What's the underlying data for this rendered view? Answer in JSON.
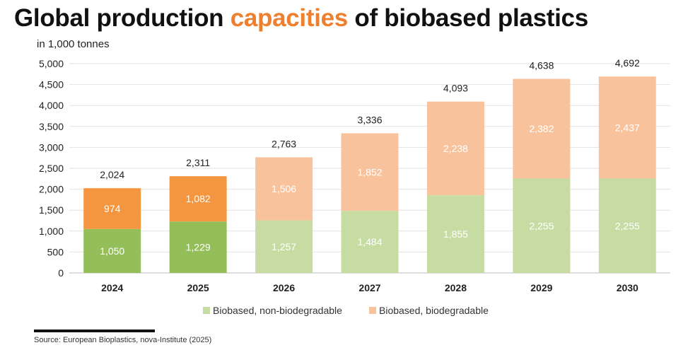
{
  "title": {
    "part1": "Global production ",
    "accent": "capacities",
    "part2": " of biobased plastics"
  },
  "unit_label": "in 1,000 tonnes",
  "source": "Source: European Bioplastics, nova-Institute (2025)",
  "colors": {
    "accent": "#ee7f2d",
    "nonbio_dark": "#94be5a",
    "nonbio_light": "#c7dca3",
    "bio_dark": "#f4963f",
    "bio_light": "#f8c39c"
  },
  "chart_data": {
    "type": "bar",
    "stacked": true,
    "categories": [
      "2024",
      "2025",
      "2026",
      "2027",
      "2028",
      "2029",
      "2030"
    ],
    "series": [
      {
        "name": "Biobased, non-biodegradable",
        "values": [
          1050,
          1229,
          1257,
          1484,
          1855,
          2255,
          2255
        ],
        "labels": [
          "1,050",
          "1,229",
          "1,257",
          "1,484",
          "1,855",
          "2,255",
          "2,255"
        ]
      },
      {
        "name": "Biobased, biodegradable",
        "values": [
          974,
          1082,
          1506,
          1852,
          2238,
          2382,
          2437
        ],
        "labels": [
          "974",
          "1,082",
          "1,506",
          "1,852",
          "2,238",
          "2,382",
          "2,437"
        ]
      }
    ],
    "totals": [
      "2,024",
      "2,311",
      "2,763",
      "3,336",
      "4,093",
      "4,638",
      "4,692"
    ],
    "ylim": [
      0,
      5000
    ],
    "yticks": [
      0,
      500,
      1000,
      1500,
      2000,
      2500,
      3000,
      3500,
      4000,
      4500,
      5000
    ],
    "ytick_labels": [
      "0",
      "500",
      "1,000",
      "1,500",
      "2,000",
      "2,500",
      "3,000",
      "3,500",
      "4,000",
      "4,500",
      "5,000"
    ],
    "grid": true,
    "legend_position": "bottom-center",
    "highlighted_categories": [
      "2024",
      "2025"
    ]
  }
}
